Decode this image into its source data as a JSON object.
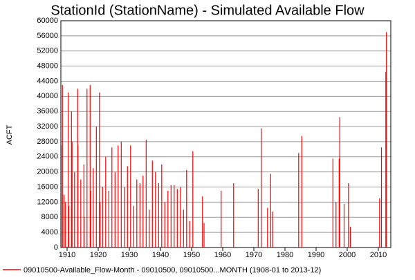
{
  "chart_data": {
    "type": "stem",
    "title": "StationId (StationName) - Simulated Available Flow",
    "y_label": "ACFT",
    "x": [
      1908.4,
      1908.5,
      1909.0,
      1909.5,
      1910.4,
      1910.6,
      1911.4,
      1911.6,
      1912.4,
      1913.4,
      1913.5,
      1914.4,
      1915.4,
      1915.5,
      1916.4,
      1917.4,
      1917.6,
      1918.4,
      1919.4,
      1920.4,
      1920.6,
      1921.4,
      1922.4,
      1923.4,
      1924.4,
      1925.4,
      1926.4,
      1927.4,
      1928.4,
      1929.4,
      1930.4,
      1931.4,
      1932.4,
      1933.4,
      1934.4,
      1935.4,
      1936.4,
      1937.4,
      1938.4,
      1939.4,
      1940.4,
      1941.4,
      1942.4,
      1943.4,
      1944.4,
      1945.4,
      1946.4,
      1947.4,
      1948.4,
      1949.4,
      1950.4,
      1953.5,
      1954.0,
      1959.5,
      1963.5,
      1971.4,
      1972.4,
      1974.4,
      1975.4,
      1976.0,
      1984.4,
      1985.4,
      1995.4,
      1996.4,
      1997.4,
      1997.6,
      1999.0,
      2000.4,
      2001.0,
      2010.4,
      2011.0,
      2012.4,
      2012.6
    ],
    "series": [
      {
        "name": "09010500-Available_Flow-Month - 09010500, 09010500...MONTH (1908-01 to 2013-12)",
        "color": "#ff0000",
        "values": [
          27000,
          43000,
          14000,
          12000,
          41000,
          11000,
          36000,
          28000,
          20000,
          42000,
          27000,
          18000,
          22000,
          8000,
          42000,
          43000,
          15000,
          21000,
          32000,
          41000,
          12000,
          16000,
          24000,
          15000,
          26500,
          20000,
          27000,
          28000,
          16000,
          21500,
          27000,
          11000,
          18000,
          17000,
          19000,
          28500,
          10000,
          23000,
          20000,
          17000,
          22000,
          12000,
          15000,
          16500,
          16500,
          15500,
          16000,
          10000,
          20500,
          7000,
          25500,
          13500,
          6500,
          15000,
          17000,
          15500,
          31500,
          10500,
          19500,
          9500,
          25000,
          29500,
          23500,
          12000,
          23500,
          34500,
          11500,
          17000,
          5500,
          13000,
          26500,
          46500,
          57000
        ]
      }
    ],
    "xlim": [
      1908,
      2014
    ],
    "xticks": [
      1910,
      1920,
      1930,
      1940,
      1950,
      1960,
      1970,
      1980,
      1990,
      2000,
      2010
    ],
    "ylim": [
      0,
      60000
    ],
    "yticks": [
      0,
      4000,
      8000,
      12000,
      16000,
      20000,
      24000,
      28000,
      32000,
      36000,
      40000,
      44000,
      48000,
      52000,
      56000,
      60000
    ],
    "grid": true
  }
}
